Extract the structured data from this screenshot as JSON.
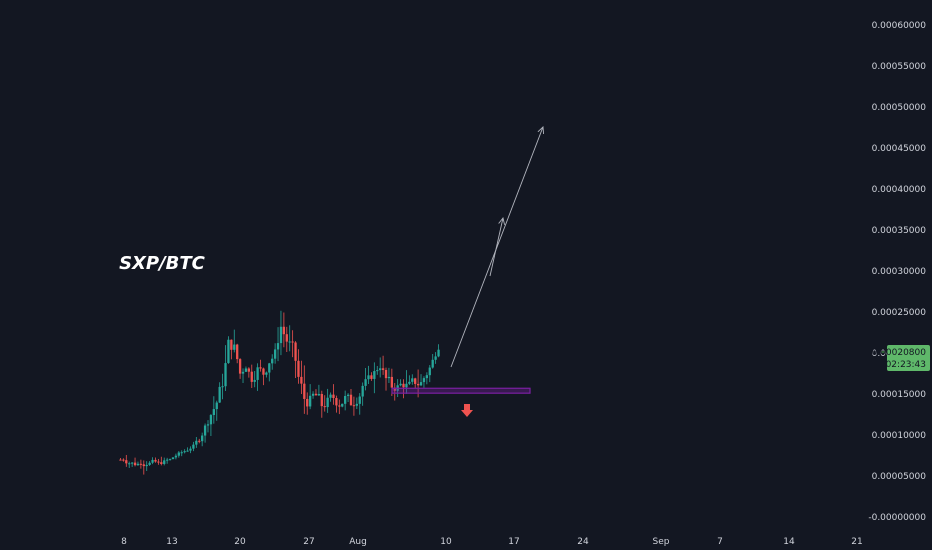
{
  "chart_data": {
    "type": "candlestick",
    "title": "SXP/BTC",
    "y_axis": {
      "ylim": [
        -0.0,
        0.0006
      ],
      "ticks": [
        "0.00060000",
        "0.00055000",
        "0.00050000",
        "0.00045000",
        "0.00040000",
        "0.00035000",
        "0.00030000",
        "0.00025000",
        "0.00020000",
        "0.00015000",
        "0.00010000",
        "0.00005000",
        "-0.00000000"
      ]
    },
    "x_axis": {
      "ticks": [
        "8",
        "13",
        "20",
        "27",
        "Aug",
        "10",
        "17",
        "24",
        "Sep",
        "7",
        "14",
        "21"
      ]
    },
    "last_price": "0.00020800",
    "countdown": "02:23:43",
    "support_zone": {
      "low": 0.000151,
      "high": 0.000157
    },
    "colors": {
      "up": "#26a69a",
      "down": "#ef5350",
      "zone": "#7b1fa2",
      "arrow": "#b2b5be",
      "background": "#131722"
    },
    "price_path": [
      [
        7e-05,
        2
      ],
      [
        6.6e-05,
        4
      ],
      [
        6.5e-05,
        5
      ],
      [
        6.6e-05,
        3
      ],
      [
        6.6e-05,
        6
      ],
      [
        6.7e-05,
        4
      ],
      [
        6.5e-05,
        5
      ],
      [
        6.7e-05,
        4
      ],
      [
        7e-05,
        3
      ],
      [
        7.5e-05,
        2
      ],
      [
        7.9e-05,
        3
      ],
      [
        8.2e-05,
        3
      ],
      [
        8.7e-05,
        2
      ],
      [
        9.5e-05,
        4
      ],
      [
        0.00011,
        5
      ],
      [
        0.000125,
        8
      ],
      [
        0.00014,
        10
      ],
      [
        0.000165,
        12
      ],
      [
        0.00021,
        14
      ],
      [
        0.000205,
        12
      ],
      [
        0.000175,
        10
      ],
      [
        0.000185,
        8
      ],
      [
        0.00017,
        10
      ],
      [
        0.00018,
        8
      ],
      [
        0.000175,
        8
      ],
      [
        0.00019,
        10
      ],
      [
        0.0002,
        8
      ],
      [
        0.000232,
        12
      ],
      [
        0.000215,
        10
      ],
      [
        0.000205,
        12
      ],
      [
        0.00017,
        12
      ],
      [
        0.000145,
        14
      ],
      [
        0.00014,
        12
      ],
      [
        0.000148,
        10
      ],
      [
        0.000137,
        12
      ],
      [
        0.00014,
        10
      ],
      [
        0.000146,
        8
      ],
      [
        0.000138,
        10
      ],
      [
        0.000145,
        8
      ],
      [
        0.00014,
        10
      ],
      [
        0.000143,
        8
      ],
      [
        0.00016,
        10
      ],
      [
        0.000168,
        8
      ],
      [
        0.000175,
        10
      ],
      [
        0.000185,
        8
      ],
      [
        0.000168,
        12
      ],
      [
        0.00016,
        10
      ],
      [
        0.000158,
        8
      ],
      [
        0.000162,
        8
      ],
      [
        0.00016,
        10
      ],
      [
        0.000165,
        8
      ],
      [
        0.000163,
        10
      ],
      [
        0.000175,
        8
      ],
      [
        0.00019,
        8
      ],
      [
        0.000208,
        6
      ]
    ],
    "arrows": [
      {
        "from": [
          9.3,
          0.00018
        ],
        "to": [
          16.1,
          0.00048
        ]
      },
      {
        "from": [
          13.9,
          0.00029
        ],
        "to": [
          16.8,
          0.000375
        ]
      }
    ],
    "signal_arrow": "down"
  }
}
